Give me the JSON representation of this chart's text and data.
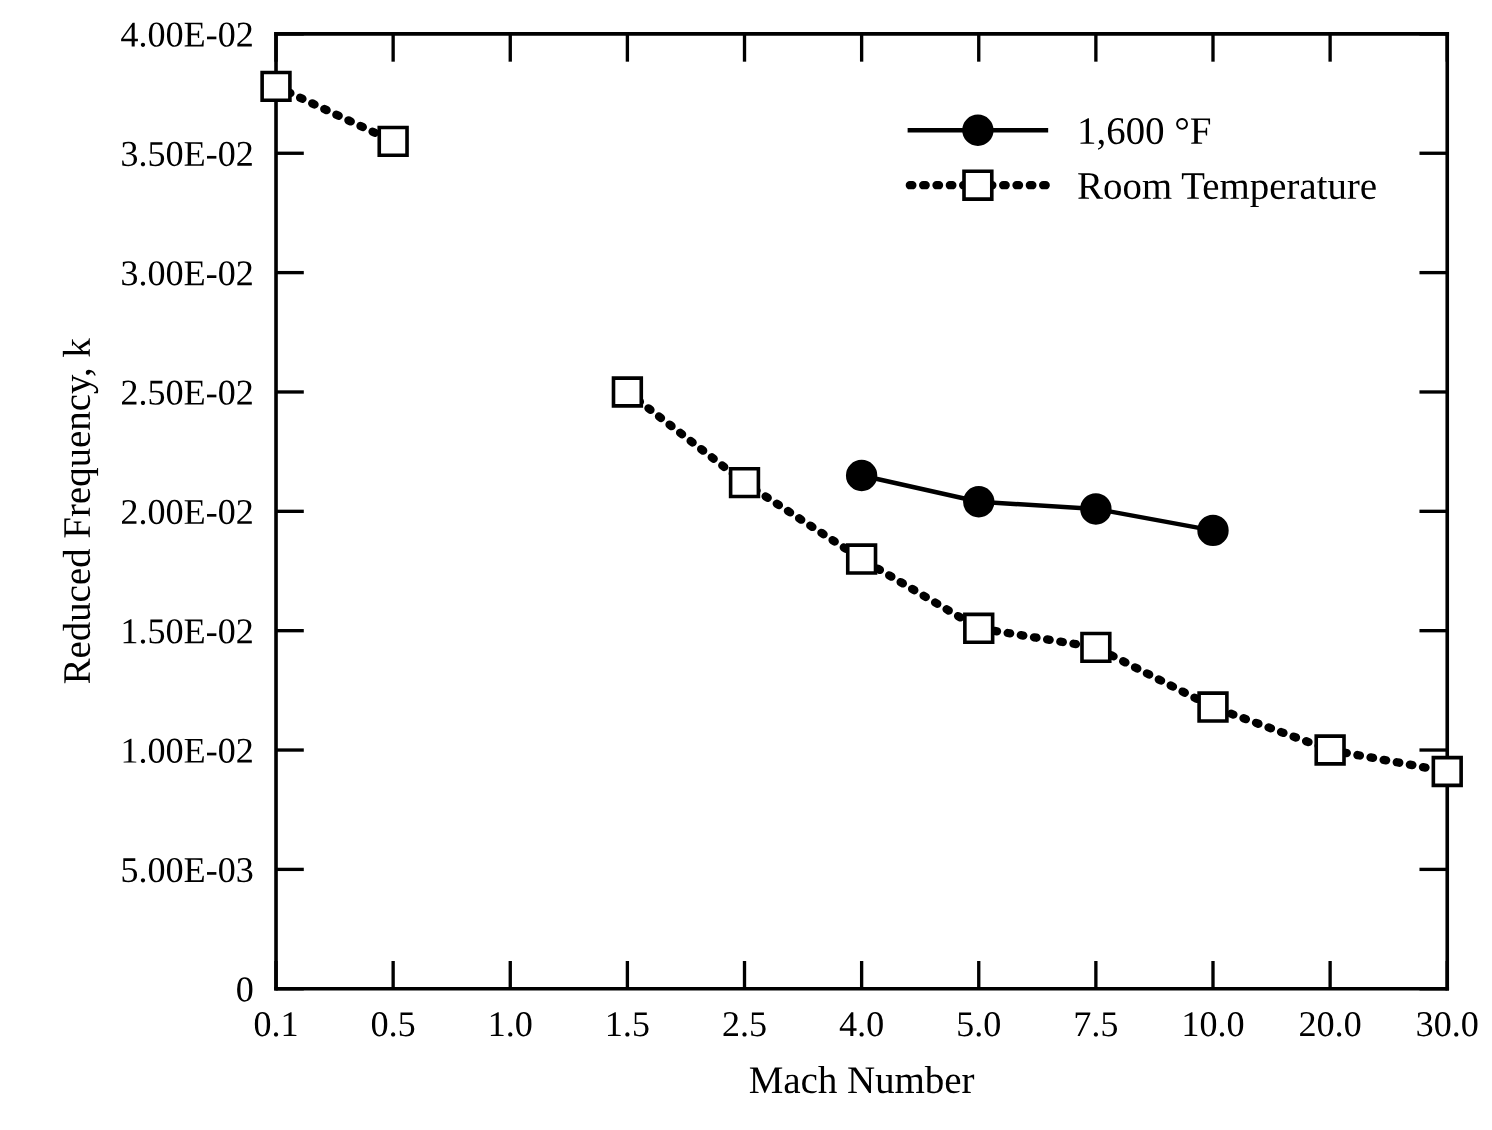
{
  "chart_data": {
    "type": "line",
    "xlabel": "Mach Number",
    "ylabel": "Reduced Frequency, k",
    "categories": [
      "0.1",
      "0.5",
      "1.0",
      "1.5",
      "2.5",
      "4.0",
      "5.0",
      "7.5",
      "10.0",
      "20.0",
      "30.0"
    ],
    "series": [
      {
        "name": "1,600 °F",
        "color": "#000000",
        "marker": "circle",
        "line_style": "solid",
        "values": [
          null,
          null,
          null,
          null,
          null,
          0.0215,
          0.0204,
          0.0201,
          0.0192,
          null,
          null
        ]
      },
      {
        "name": "Room Temperature",
        "color": "#000000",
        "marker": "square",
        "line_style": "dotted",
        "values": [
          0.0378,
          0.0355,
          null,
          0.025,
          0.0212,
          0.018,
          0.0151,
          0.0143,
          0.0118,
          0.01,
          0.0091
        ]
      }
    ],
    "ylim": [
      0,
      0.04
    ],
    "yticks": [
      0,
      {
        "value": 0.005,
        "label": "5.00E-03"
      },
      {
        "value": 0.01,
        "label": "1.00E-02"
      },
      {
        "value": 0.015,
        "label": "1.50E-02"
      },
      {
        "value": 0.02,
        "label": "2.00E-02"
      },
      {
        "value": 0.025,
        "label": "2.50E-02"
      },
      {
        "value": 0.03,
        "label": "3.00E-02"
      },
      {
        "value": 0.035,
        "label": "3.50E-02"
      },
      {
        "value": 0.04,
        "label": "4.00E-02"
      }
    ],
    "grid": false,
    "legend": "top right"
  }
}
